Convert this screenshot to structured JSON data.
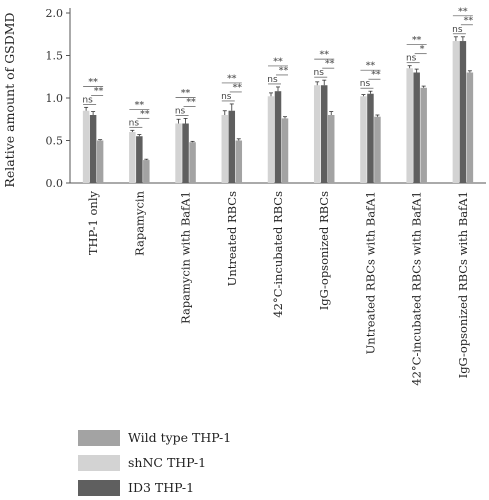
{
  "chart_data": {
    "type": "bar",
    "ylabel": "Relative amount of GSDMD",
    "ylim": [
      0,
      2.0
    ],
    "yticks": [
      "0.0",
      "0.5",
      "1.0",
      "1.5",
      "2.0"
    ],
    "categories": [
      "THP-1 only",
      "Rapamycin",
      "Rapamycin with BafA1",
      "Untreated RBCs",
      "42°C-incubated RBCs",
      "IgG-opsonized RBCs",
      "Untreated RBCs with BafA1",
      "42°C-incubated RBCs with BafA1",
      "IgG-opsonized RBCs with BafA1"
    ],
    "series": [
      {
        "name": "shNC THP-1",
        "color": "#d3d3d3",
        "values": [
          0.85,
          0.6,
          0.7,
          0.8,
          1.02,
          1.15,
          1.02,
          1.35,
          1.67
        ],
        "errors": [
          0.04,
          0.02,
          0.05,
          0.05,
          0.04,
          0.04,
          0.02,
          0.03,
          0.05
        ]
      },
      {
        "name": "ID3 THP-1",
        "color": "#5f5f5f",
        "values": [
          0.8,
          0.55,
          0.7,
          0.85,
          1.08,
          1.15,
          1.05,
          1.3,
          1.67
        ],
        "errors": [
          0.04,
          0.02,
          0.06,
          0.08,
          0.05,
          0.06,
          0.03,
          0.04,
          0.05
        ]
      },
      {
        "name": "Wild type THP-1",
        "color": "#a3a3a3",
        "values": [
          0.5,
          0.27,
          0.48,
          0.5,
          0.76,
          0.8,
          0.78,
          1.12,
          1.3
        ],
        "errors": [
          0.01,
          0.01,
          0.01,
          0.02,
          0.02,
          0.04,
          0.02,
          0.02,
          0.02
        ]
      }
    ],
    "significance": {
      "pair_label": "ns",
      "top_label": "**",
      "inner_label": "**",
      "inner_label_group8": "*"
    },
    "legend": {
      "placement": "bottom-left",
      "entries": [
        {
          "label": "Wild type THP-1",
          "color": "#a3a3a3"
        },
        {
          "label": "shNC THP-1",
          "color": "#d3d3d3"
        },
        {
          "label": "ID3 THP-1",
          "color": "#5f5f5f"
        }
      ]
    }
  }
}
